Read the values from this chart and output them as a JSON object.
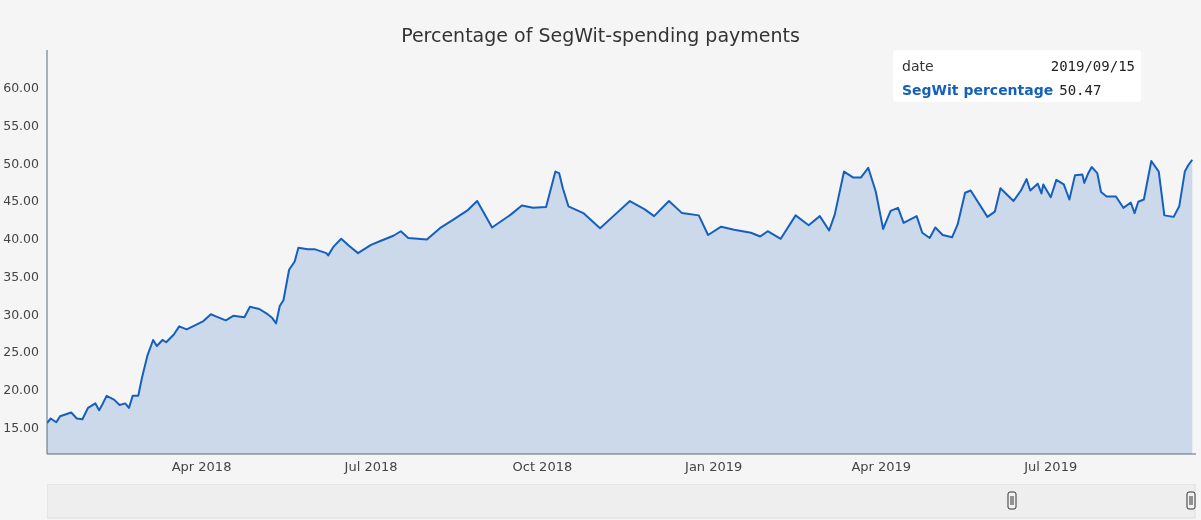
{
  "chart_data": {
    "type": "area",
    "title": "Percentage of SegWit-spending payments",
    "x": [
      "2018-01-08",
      "2018-01-10",
      "2018-01-13",
      "2018-01-15",
      "2018-01-21",
      "2018-01-24",
      "2018-01-27",
      "2018-01-30",
      "2018-02-03",
      "2018-02-05",
      "2018-02-07",
      "2018-02-09",
      "2018-02-13",
      "2018-02-16",
      "2018-02-19",
      "2018-02-21",
      "2018-02-23",
      "2018-02-26",
      "2018-02-28",
      "2018-03-03",
      "2018-03-06",
      "2018-03-08",
      "2018-03-11",
      "2018-03-13",
      "2018-03-17",
      "2018-03-20",
      "2018-03-24",
      "2018-03-29",
      "2018-04-02",
      "2018-04-06",
      "2018-04-09",
      "2018-04-14",
      "2018-04-18",
      "2018-04-24",
      "2018-04-27",
      "2018-05-02",
      "2018-05-06",
      "2018-05-09",
      "2018-05-11",
      "2018-05-13",
      "2018-05-15",
      "2018-05-18",
      "2018-05-21",
      "2018-05-23",
      "2018-05-28",
      "2018-06-01",
      "2018-06-07",
      "2018-06-08",
      "2018-06-11",
      "2018-06-15",
      "2018-06-19",
      "2018-06-24",
      "2018-07-01",
      "2018-07-06",
      "2018-07-10",
      "2018-07-13",
      "2018-07-17",
      "2018-07-21",
      "2018-07-31",
      "2018-08-07",
      "2018-08-14",
      "2018-08-22",
      "2018-08-27",
      "2018-09-04",
      "2018-09-14",
      "2018-09-20",
      "2018-09-26",
      "2018-10-03",
      "2018-10-08",
      "2018-10-10",
      "2018-10-12",
      "2018-10-15",
      "2018-10-23",
      "2018-11-01",
      "2018-11-09",
      "2018-11-17",
      "2018-11-25",
      "2018-11-30",
      "2018-12-08",
      "2018-12-15",
      "2018-12-24",
      "2018-12-29",
      "2019-01-05",
      "2019-01-12",
      "2019-01-21",
      "2019-01-26",
      "2019-01-30",
      "2019-02-06",
      "2019-02-14",
      "2019-02-21",
      "2019-02-27",
      "2019-03-04",
      "2019-03-07",
      "2019-03-12",
      "2019-03-17",
      "2019-03-21",
      "2019-03-25",
      "2019-03-29",
      "2019-04-02",
      "2019-04-06",
      "2019-04-10",
      "2019-04-13",
      "2019-04-20",
      "2019-04-23",
      "2019-04-27",
      "2019-04-30",
      "2019-05-04",
      "2019-05-09",
      "2019-05-12",
      "2019-05-16",
      "2019-05-19",
      "2019-05-28",
      "2019-06-01",
      "2019-06-04",
      "2019-06-11",
      "2019-06-15",
      "2019-06-18",
      "2019-06-20",
      "2019-06-24",
      "2019-06-26",
      "2019-06-27",
      "2019-07-01",
      "2019-07-04",
      "2019-07-08",
      "2019-07-11",
      "2019-07-14",
      "2019-07-18",
      "2019-07-19",
      "2019-07-21",
      "2019-07-23",
      "2019-07-26",
      "2019-07-28",
      "2019-07-31",
      "2019-08-05",
      "2019-08-09",
      "2019-08-13",
      "2019-08-15",
      "2019-08-17",
      "2019-08-20",
      "2019-08-24",
      "2019-08-28",
      "2019-08-31",
      "2019-09-05",
      "2019-09-08",
      "2019-09-11",
      "2019-09-13",
      "2019-09-15"
    ],
    "series": [
      {
        "name": "SegWit percentage",
        "color": "#1560bd",
        "values": [
          15.6,
          16.2,
          15.7,
          16.5,
          17.0,
          16.2,
          16.1,
          17.6,
          18.2,
          17.3,
          18.2,
          19.2,
          18.7,
          18.0,
          18.2,
          17.6,
          19.2,
          19.2,
          21.6,
          24.6,
          26.6,
          25.8,
          26.6,
          26.3,
          27.3,
          28.4,
          28.0,
          28.6,
          29.1,
          30.0,
          29.7,
          29.2,
          29.8,
          29.6,
          31.0,
          30.7,
          30.1,
          29.5,
          28.8,
          31.1,
          31.9,
          35.9,
          37.0,
          38.8,
          38.6,
          38.6,
          38.1,
          37.8,
          39.0,
          40.0,
          39.1,
          38.1,
          39.2,
          39.7,
          40.1,
          40.4,
          41.0,
          40.1,
          39.9,
          41.4,
          42.5,
          43.8,
          45.0,
          41.5,
          43.2,
          44.4,
          44.1,
          44.2,
          48.9,
          48.7,
          46.7,
          44.3,
          43.4,
          41.4,
          43.2,
          45.0,
          43.9,
          43.0,
          45.0,
          43.4,
          43.1,
          40.5,
          41.6,
          41.2,
          40.8,
          40.3,
          41.0,
          40.0,
          43.1,
          41.8,
          43.0,
          41.1,
          43.2,
          48.9,
          48.1,
          48.1,
          49.4,
          46.3,
          41.3,
          43.7,
          44.1,
          42.1,
          43.0,
          40.8,
          40.1,
          41.5,
          40.5,
          40.2,
          41.9,
          46.1,
          46.4,
          42.9,
          43.6,
          46.7,
          45.0,
          46.4,
          47.9,
          46.4,
          47.3,
          46.0,
          47.2,
          45.5,
          47.8,
          47.2,
          45.2,
          48.4,
          48.5,
          47.4,
          48.6,
          49.5,
          48.7,
          46.2,
          45.6,
          45.6,
          44.1,
          44.8,
          43.4,
          44.9,
          45.2,
          50.3,
          48.9,
          43.1,
          42.9,
          44.3,
          48.9,
          49.8,
          50.47
        ]
      }
    ],
    "xlim": [
      "2018-01-08",
      "2019-09-17"
    ],
    "xticks": [
      {
        "value": "2018-04-01",
        "label": "Apr 2018"
      },
      {
        "value": "2018-07-01",
        "label": "Jul 2018"
      },
      {
        "value": "2018-10-01",
        "label": "Oct 2018"
      },
      {
        "value": "2019-01-01",
        "label": "Jan 2019"
      },
      {
        "value": "2019-04-01",
        "label": "Apr 2019"
      },
      {
        "value": "2019-07-01",
        "label": "Jul 2019"
      }
    ],
    "ylim": [
      11.5,
      65
    ],
    "yticks": [
      {
        "value": 15,
        "label": "15.00"
      },
      {
        "value": 20,
        "label": "20.00"
      },
      {
        "value": 25,
        "label": "25.00"
      },
      {
        "value": 30,
        "label": "30.00"
      },
      {
        "value": 35,
        "label": "35.00"
      },
      {
        "value": 40,
        "label": "40.00"
      },
      {
        "value": 45,
        "label": "45.00"
      },
      {
        "value": 50,
        "label": "50.00"
      },
      {
        "value": 55,
        "label": "55.00"
      },
      {
        "value": 60,
        "label": "60.00"
      }
    ],
    "grid": false,
    "annotations": [
      "date",
      "2019/09/15",
      "50.47"
    ]
  }
}
